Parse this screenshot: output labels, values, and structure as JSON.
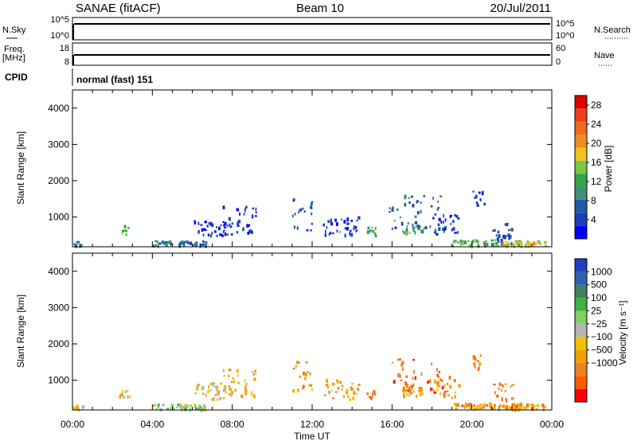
{
  "header": {
    "station": "SANAE (fitACF)",
    "beam": "Beam 10",
    "date": "20/Jul/2011"
  },
  "status_panel": {
    "nsky_label": "N.Sky",
    "nsky_ticks": [
      "10^5",
      "10^0"
    ],
    "nsearch_label": "N.Search",
    "nsearch_ticks": [
      "10^5",
      "10^0"
    ],
    "freq_label": "Freq.",
    "freq_unit": "[MHz]",
    "freq_ticks": [
      "18",
      "8"
    ],
    "nave_label": "Nave",
    "nave_ticks": [
      "60",
      "0"
    ],
    "cpid_label": "CPID",
    "cpid_text": "normal (fast) 151"
  },
  "colors": {
    "power_scale": [
      "#0000ff",
      "#1a3fb8",
      "#1f5aa8",
      "#3f8f7a",
      "#33a64a",
      "#7ac843",
      "#f0c21d",
      "#f08d22",
      "#f06a1e",
      "#f03c17",
      "#e00000"
    ],
    "velocity_scale": [
      "#ff0000",
      "#ff5a00",
      "#f08020",
      "#f0a000",
      "#f0c000",
      "#b4b4b4",
      "#80d060",
      "#40b040",
      "#408060",
      "#3060b0",
      "#2040c0"
    ],
    "ground_scatter": "#808080"
  },
  "chart_data": [
    {
      "type": "heatmap",
      "name": "power",
      "xlabel": "",
      "ylabel": "Slant Range [km]",
      "xlim": [
        "00:00",
        "24:00"
      ],
      "ylim": [
        180,
        4500
      ],
      "yticks": [
        "1000",
        "2000",
        "3000",
        "4000"
      ],
      "colorbar": {
        "label": "Power [dB]",
        "range": [
          0,
          30
        ],
        "ticks": [
          "4",
          "8",
          "12",
          "16",
          "20",
          "24",
          "28"
        ]
      },
      "echoes": [
        {
          "start": "00:00",
          "end": "00:30",
          "r0": 180,
          "r1": 300,
          "level": 0.2
        },
        {
          "start": "02:20",
          "end": "02:50",
          "r0": 500,
          "r1": 750,
          "level": 0.45
        },
        {
          "start": "04:00",
          "end": "06:40",
          "r0": 180,
          "r1": 320,
          "level": 0.25
        },
        {
          "start": "06:00",
          "end": "08:00",
          "r0": 450,
          "r1": 900,
          "level": 0.1
        },
        {
          "start": "07:30",
          "end": "09:10",
          "r0": 500,
          "r1": 1300,
          "level": 0.1
        },
        {
          "start": "11:00",
          "end": "12:00",
          "r0": 600,
          "r1": 1500,
          "level": 0.15
        },
        {
          "start": "12:30",
          "end": "14:20",
          "r0": 450,
          "r1": 1000,
          "level": 0.1
        },
        {
          "start": "14:40",
          "end": "15:10",
          "r0": 450,
          "r1": 700,
          "level": 0.4
        },
        {
          "start": "15:50",
          "end": "18:30",
          "r0": 600,
          "r1": 1600,
          "level": 0.2
        },
        {
          "start": "16:30",
          "end": "17:30",
          "r0": 550,
          "r1": 750,
          "level": 0.35
        },
        {
          "start": "18:00",
          "end": "19:20",
          "r0": 500,
          "r1": 1100,
          "level": 0.1
        },
        {
          "start": "19:00",
          "end": "22:30",
          "r0": 180,
          "r1": 350,
          "level": 0.4
        },
        {
          "start": "20:00",
          "end": "20:40",
          "r0": 1300,
          "r1": 1700,
          "level": 0.1
        },
        {
          "start": "21:00",
          "end": "22:00",
          "r0": 300,
          "r1": 900,
          "level": 0.15
        },
        {
          "start": "21:30",
          "end": "23:40",
          "r0": 180,
          "r1": 320,
          "level": 0.6
        }
      ]
    },
    {
      "type": "heatmap",
      "name": "velocity",
      "xlabel": "Time UT",
      "ylabel": "Slant Range [km]",
      "xlim": [
        "00:00",
        "24:00"
      ],
      "ylim": [
        180,
        4500
      ],
      "yticks": [
        "1000",
        "2000",
        "3000",
        "4000"
      ],
      "xticks": [
        "00:00",
        "04:00",
        "08:00",
        "12:00",
        "16:00",
        "20:00",
        "00:00"
      ],
      "colorbar": {
        "label": "Velocity [m s⁻¹]",
        "range": [
          -1200,
          1200
        ],
        "ticks": [
          "1000",
          "500",
          "100",
          "25",
          "−25",
          "−100",
          "−500",
          "−1000"
        ]
      },
      "echoes": [
        {
          "start": "00:00",
          "end": "00:30",
          "r0": 180,
          "r1": 300,
          "level": 0.45
        },
        {
          "start": "02:20",
          "end": "02:50",
          "r0": 500,
          "r1": 750,
          "level": 0.35
        },
        {
          "start": "04:00",
          "end": "06:40",
          "r0": 180,
          "r1": 320,
          "level": 0.55
        },
        {
          "start": "06:00",
          "end": "08:00",
          "r0": 450,
          "r1": 900,
          "level": 0.4
        },
        {
          "start": "07:30",
          "end": "09:10",
          "r0": 500,
          "r1": 1300,
          "level": 0.35
        },
        {
          "start": "11:00",
          "end": "12:00",
          "r0": 600,
          "r1": 1500,
          "level": 0.25
        },
        {
          "start": "12:30",
          "end": "14:20",
          "r0": 450,
          "r1": 1000,
          "level": 0.35
        },
        {
          "start": "14:40",
          "end": "15:10",
          "r0": 450,
          "r1": 700,
          "level": 0.2
        },
        {
          "start": "15:50",
          "end": "18:30",
          "r0": 600,
          "r1": 1600,
          "level": 0.18
        },
        {
          "start": "16:30",
          "end": "17:30",
          "r0": 550,
          "r1": 750,
          "level": 0.3
        },
        {
          "start": "18:00",
          "end": "19:20",
          "r0": 500,
          "r1": 1100,
          "level": 0.25
        },
        {
          "start": "19:00",
          "end": "22:30",
          "r0": 180,
          "r1": 350,
          "level": 0.3
        },
        {
          "start": "20:00",
          "end": "20:40",
          "r0": 1300,
          "r1": 1700,
          "level": 0.2
        },
        {
          "start": "21:00",
          "end": "22:00",
          "r0": 300,
          "r1": 900,
          "level": 0.22
        },
        {
          "start": "21:30",
          "end": "23:40",
          "r0": 180,
          "r1": 320,
          "level": 0.28
        }
      ]
    }
  ]
}
